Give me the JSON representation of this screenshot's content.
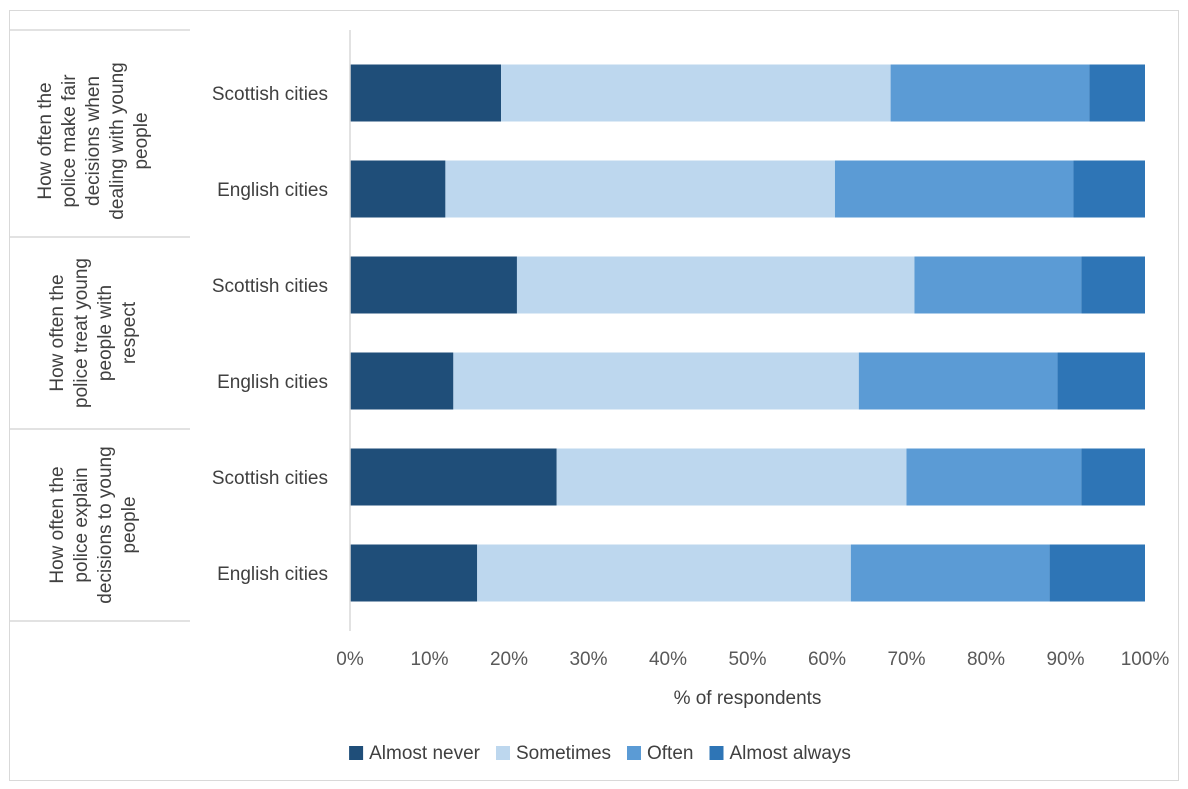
{
  "chart_data": {
    "type": "bar",
    "orientation": "horizontal",
    "stacked": "percent",
    "xlabel": "% of respondents",
    "xlim": [
      0,
      100
    ],
    "x_ticks": [
      "0%",
      "10%",
      "20%",
      "30%",
      "40%",
      "50%",
      "60%",
      "70%",
      "80%",
      "90%",
      "100%"
    ],
    "grid": false,
    "legend_position": "bottom",
    "groups": [
      {
        "label": "How often the police make fair decisions when dealing with young people",
        "label_lines": [
          "How often the",
          "police make fair",
          "decisions when",
          "dealing with young",
          "people"
        ],
        "categories": [
          "Scottish cities",
          "English cities"
        ]
      },
      {
        "label": "How often the police treat young people with respect",
        "label_lines": [
          "How often the",
          "police treat young",
          "people with",
          "respect"
        ],
        "categories": [
          "Scottish cities",
          "English cities"
        ]
      },
      {
        "label": "How often the police explain decisions to young people",
        "label_lines": [
          "How often the",
          "police explain",
          "decisions to young",
          "people"
        ],
        "categories": [
          "Scottish cities",
          "English cities"
        ]
      }
    ],
    "series": [
      {
        "name": "Almost never",
        "color": "#1f4e79",
        "values": [
          19,
          12,
          21,
          13,
          26,
          16
        ]
      },
      {
        "name": "Sometimes",
        "color": "#bdd7ee",
        "values": [
          49,
          49,
          50,
          51,
          44,
          47
        ]
      },
      {
        "name": "Often",
        "color": "#5b9bd5",
        "values": [
          25,
          30,
          21,
          25,
          22,
          25
        ]
      },
      {
        "name": "Almost always",
        "color": "#2e75b6",
        "values": [
          7,
          9,
          8,
          11,
          8,
          12
        ]
      }
    ]
  }
}
